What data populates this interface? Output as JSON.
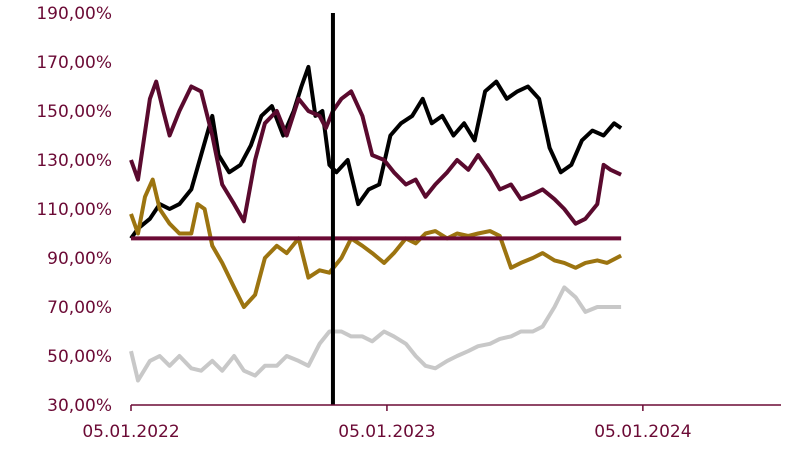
{
  "chart_data": {
    "type": "line",
    "title": "",
    "xlabel": "",
    "ylabel": "",
    "ylim": [
      30,
      190
    ],
    "y_ticks": [
      "190,00%",
      "170,00%",
      "150,00%",
      "130,00%",
      "110,00%",
      "90,00%",
      "70,00%",
      "50,00%",
      "30,00%"
    ],
    "y_tick_values": [
      190,
      170,
      150,
      130,
      110,
      90,
      70,
      50,
      30
    ],
    "x_ticks": [
      "05.01.2022",
      "05.01.2023",
      "05.01.2024"
    ],
    "x_tick_values": [
      "2022-01-05",
      "2023-01-05",
      "2024-01-05"
    ],
    "xlim": [
      "2022-01-05",
      "2024-07-20"
    ],
    "grid": false,
    "legend": "none",
    "axis_color": "#6b0a35",
    "vertical_marker": {
      "x": "2022-10-20",
      "color": "#000000"
    },
    "horizontal_reference": {
      "y": 98,
      "color": "#6b0a35"
    },
    "series": [
      {
        "color": "#000000",
        "points": [
          [
            "2022-01-05",
            98
          ],
          [
            "2022-01-15",
            102
          ],
          [
            "2022-02-01",
            106
          ],
          [
            "2022-02-15",
            112
          ],
          [
            "2022-03-01",
            110
          ],
          [
            "2022-03-15",
            112
          ],
          [
            "2022-04-01",
            118
          ],
          [
            "2022-04-15",
            132
          ],
          [
            "2022-05-01",
            148
          ],
          [
            "2022-05-10",
            132
          ],
          [
            "2022-05-25",
            125
          ],
          [
            "2022-06-10",
            128
          ],
          [
            "2022-06-25",
            136
          ],
          [
            "2022-07-10",
            148
          ],
          [
            "2022-07-25",
            152
          ],
          [
            "2022-08-10",
            140
          ],
          [
            "2022-08-25",
            150
          ],
          [
            "2022-09-05",
            160
          ],
          [
            "2022-09-15",
            168
          ],
          [
            "2022-09-25",
            148
          ],
          [
            "2022-10-05",
            150
          ],
          [
            "2022-10-15",
            128
          ],
          [
            "2022-10-25",
            125
          ],
          [
            "2022-11-10",
            130
          ],
          [
            "2022-11-25",
            112
          ],
          [
            "2022-12-10",
            118
          ],
          [
            "2022-12-25",
            120
          ],
          [
            "2023-01-10",
            140
          ],
          [
            "2023-01-25",
            145
          ],
          [
            "2023-02-10",
            148
          ],
          [
            "2023-02-25",
            155
          ],
          [
            "2023-03-10",
            145
          ],
          [
            "2023-03-25",
            148
          ],
          [
            "2023-04-10",
            140
          ],
          [
            "2023-04-25",
            145
          ],
          [
            "2023-05-10",
            138
          ],
          [
            "2023-05-25",
            158
          ],
          [
            "2023-06-10",
            162
          ],
          [
            "2023-06-25",
            155
          ],
          [
            "2023-07-10",
            158
          ],
          [
            "2023-07-25",
            160
          ],
          [
            "2023-08-10",
            155
          ],
          [
            "2023-08-25",
            135
          ],
          [
            "2023-09-10",
            125
          ],
          [
            "2023-09-25",
            128
          ],
          [
            "2023-10-10",
            138
          ],
          [
            "2023-10-25",
            142
          ],
          [
            "2023-11-10",
            140
          ],
          [
            "2023-11-25",
            145
          ],
          [
            "2023-12-05",
            143
          ]
        ]
      },
      {
        "color": "#5a0a2e",
        "points": [
          [
            "2022-01-05",
            130
          ],
          [
            "2022-01-15",
            122
          ],
          [
            "2022-02-01",
            155
          ],
          [
            "2022-02-10",
            162
          ],
          [
            "2022-02-20",
            150
          ],
          [
            "2022-03-01",
            140
          ],
          [
            "2022-03-15",
            150
          ],
          [
            "2022-04-01",
            160
          ],
          [
            "2022-04-15",
            158
          ],
          [
            "2022-05-01",
            140
          ],
          [
            "2022-05-15",
            120
          ],
          [
            "2022-06-01",
            112
          ],
          [
            "2022-06-15",
            105
          ],
          [
            "2022-07-01",
            130
          ],
          [
            "2022-07-15",
            145
          ],
          [
            "2022-08-01",
            150
          ],
          [
            "2022-08-15",
            140
          ],
          [
            "2022-09-01",
            155
          ],
          [
            "2022-09-15",
            150
          ],
          [
            "2022-10-01",
            148
          ],
          [
            "2022-10-10",
            143
          ],
          [
            "2022-10-20",
            150
          ],
          [
            "2022-11-01",
            155
          ],
          [
            "2022-11-15",
            158
          ],
          [
            "2022-12-01",
            148
          ],
          [
            "2022-12-15",
            132
          ],
          [
            "2023-01-01",
            130
          ],
          [
            "2023-01-15",
            125
          ],
          [
            "2023-02-01",
            120
          ],
          [
            "2023-02-15",
            122
          ],
          [
            "2023-03-01",
            115
          ],
          [
            "2023-03-15",
            120
          ],
          [
            "2023-04-01",
            125
          ],
          [
            "2023-04-15",
            130
          ],
          [
            "2023-05-01",
            126
          ],
          [
            "2023-05-15",
            132
          ],
          [
            "2023-06-01",
            125
          ],
          [
            "2023-06-15",
            118
          ],
          [
            "2023-07-01",
            120
          ],
          [
            "2023-07-15",
            114
          ],
          [
            "2023-08-01",
            116
          ],
          [
            "2023-08-15",
            118
          ],
          [
            "2023-09-01",
            114
          ],
          [
            "2023-09-15",
            110
          ],
          [
            "2023-10-01",
            104
          ],
          [
            "2023-10-15",
            106
          ],
          [
            "2023-11-01",
            112
          ],
          [
            "2023-11-10",
            128
          ],
          [
            "2023-11-20",
            126
          ],
          [
            "2023-12-05",
            124
          ]
        ]
      },
      {
        "color": "#9c7410",
        "points": [
          [
            "2022-01-05",
            108
          ],
          [
            "2022-01-15",
            100
          ],
          [
            "2022-01-25",
            115
          ],
          [
            "2022-02-05",
            122
          ],
          [
            "2022-02-15",
            110
          ],
          [
            "2022-03-01",
            104
          ],
          [
            "2022-03-15",
            100
          ],
          [
            "2022-04-01",
            100
          ],
          [
            "2022-04-10",
            112
          ],
          [
            "2022-04-20",
            110
          ],
          [
            "2022-05-01",
            95
          ],
          [
            "2022-05-15",
            88
          ],
          [
            "2022-06-01",
            78
          ],
          [
            "2022-06-15",
            70
          ],
          [
            "2022-07-01",
            75
          ],
          [
            "2022-07-15",
            90
          ],
          [
            "2022-08-01",
            95
          ],
          [
            "2022-08-15",
            92
          ],
          [
            "2022-09-01",
            98
          ],
          [
            "2022-09-15",
            82
          ],
          [
            "2022-10-01",
            85
          ],
          [
            "2022-10-15",
            84
          ],
          [
            "2022-11-01",
            90
          ],
          [
            "2022-11-15",
            98
          ],
          [
            "2022-12-01",
            95
          ],
          [
            "2022-12-15",
            92
          ],
          [
            "2023-01-01",
            88
          ],
          [
            "2023-01-15",
            92
          ],
          [
            "2023-02-01",
            98
          ],
          [
            "2023-02-15",
            96
          ],
          [
            "2023-03-01",
            100
          ],
          [
            "2023-03-15",
            101
          ],
          [
            "2023-04-01",
            98
          ],
          [
            "2023-04-15",
            100
          ],
          [
            "2023-05-01",
            99
          ],
          [
            "2023-05-15",
            100
          ],
          [
            "2023-06-01",
            101
          ],
          [
            "2023-06-15",
            99
          ],
          [
            "2023-07-01",
            86
          ],
          [
            "2023-07-15",
            88
          ],
          [
            "2023-08-01",
            90
          ],
          [
            "2023-08-15",
            92
          ],
          [
            "2023-09-01",
            89
          ],
          [
            "2023-09-15",
            88
          ],
          [
            "2023-10-01",
            86
          ],
          [
            "2023-10-15",
            88
          ],
          [
            "2023-11-01",
            89
          ],
          [
            "2023-11-15",
            88
          ],
          [
            "2023-12-05",
            91
          ]
        ]
      },
      {
        "color": "#c8c8c8",
        "points": [
          [
            "2022-01-05",
            52
          ],
          [
            "2022-01-15",
            40
          ],
          [
            "2022-02-01",
            48
          ],
          [
            "2022-02-15",
            50
          ],
          [
            "2022-03-01",
            46
          ],
          [
            "2022-03-15",
            50
          ],
          [
            "2022-04-01",
            45
          ],
          [
            "2022-04-15",
            44
          ],
          [
            "2022-05-01",
            48
          ],
          [
            "2022-05-15",
            44
          ],
          [
            "2022-06-01",
            50
          ],
          [
            "2022-06-15",
            44
          ],
          [
            "2022-07-01",
            42
          ],
          [
            "2022-07-15",
            46
          ],
          [
            "2022-08-01",
            46
          ],
          [
            "2022-08-15",
            50
          ],
          [
            "2022-09-01",
            48
          ],
          [
            "2022-09-15",
            46
          ],
          [
            "2022-10-01",
            55
          ],
          [
            "2022-10-15",
            60
          ],
          [
            "2022-11-01",
            60
          ],
          [
            "2022-11-15",
            58
          ],
          [
            "2022-12-01",
            58
          ],
          [
            "2022-12-15",
            56
          ],
          [
            "2023-01-01",
            60
          ],
          [
            "2023-01-15",
            58
          ],
          [
            "2023-02-01",
            55
          ],
          [
            "2023-02-15",
            50
          ],
          [
            "2023-03-01",
            46
          ],
          [
            "2023-03-15",
            45
          ],
          [
            "2023-04-01",
            48
          ],
          [
            "2023-04-15",
            50
          ],
          [
            "2023-05-01",
            52
          ],
          [
            "2023-05-15",
            54
          ],
          [
            "2023-06-01",
            55
          ],
          [
            "2023-06-15",
            57
          ],
          [
            "2023-07-01",
            58
          ],
          [
            "2023-07-15",
            60
          ],
          [
            "2023-08-01",
            60
          ],
          [
            "2023-08-15",
            62
          ],
          [
            "2023-09-01",
            70
          ],
          [
            "2023-09-15",
            78
          ],
          [
            "2023-10-01",
            74
          ],
          [
            "2023-10-15",
            68
          ],
          [
            "2023-11-01",
            70
          ],
          [
            "2023-12-05",
            70
          ]
        ]
      }
    ]
  }
}
